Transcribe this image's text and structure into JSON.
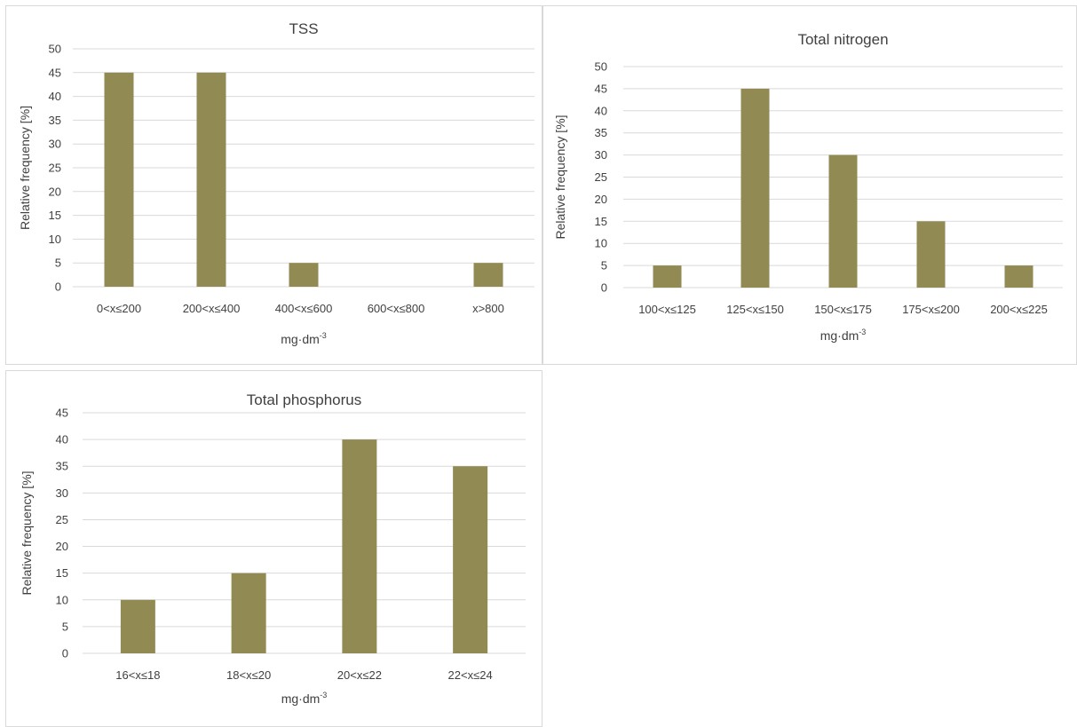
{
  "colors": {
    "bar": "#928a53",
    "grid": "#d9d9d9",
    "text": "#404040"
  },
  "chart_data": [
    {
      "type": "bar",
      "title": "TSS",
      "ylabel": "Relative frequency [%]",
      "xlabel_base": "mg·dm",
      "xlabel_sup": "-3",
      "categories": [
        "0<x≤200",
        "200<x≤400",
        "400<x≤600",
        "600<x≤800",
        "x>800"
      ],
      "values": [
        45,
        45,
        5,
        0,
        5
      ],
      "ylim": [
        0,
        50
      ],
      "yticks": [
        0,
        5,
        10,
        15,
        20,
        25,
        30,
        35,
        40,
        45,
        50
      ],
      "grid": true
    },
    {
      "type": "bar",
      "title": "Total nitrogen",
      "ylabel": "Relative frequency [%]",
      "xlabel_base": "mg·dm",
      "xlabel_sup": "-3",
      "categories": [
        "100<x≤125",
        "125<x≤150",
        "150<x≤175",
        "175<x≤200",
        "200<x≤225"
      ],
      "values": [
        5,
        45,
        30,
        15,
        5
      ],
      "ylim": [
        0,
        50
      ],
      "yticks": [
        0,
        5,
        10,
        15,
        20,
        25,
        30,
        35,
        40,
        45,
        50
      ],
      "grid": true
    },
    {
      "type": "bar",
      "title": "Total phosphorus",
      "ylabel": "Relative frequency [%]",
      "xlabel_base": "mg·dm",
      "xlabel_sup": "-3",
      "categories": [
        "16<x≤18",
        "18<x≤20",
        "20<x≤22",
        "22<x≤24"
      ],
      "values": [
        10,
        15,
        40,
        35
      ],
      "ylim": [
        0,
        45
      ],
      "yticks": [
        0,
        5,
        10,
        15,
        20,
        25,
        30,
        35,
        40,
        45
      ],
      "grid": true
    }
  ]
}
